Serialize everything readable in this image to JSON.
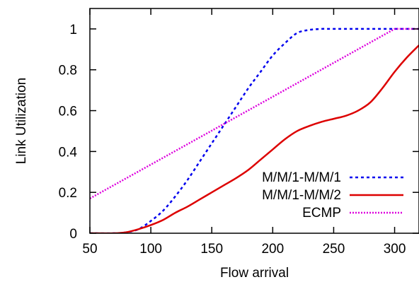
{
  "chart_data": {
    "type": "line",
    "title": "",
    "xlabel": "Flow arrival",
    "ylabel": "Link Utilization",
    "xlim": [
      50,
      320
    ],
    "ylim": [
      0,
      1.1
    ],
    "xticks": [
      50,
      100,
      150,
      200,
      250,
      300
    ],
    "yticks": [
      0,
      0.2,
      0.4,
      0.6,
      0.8,
      1
    ],
    "ytick_labels": [
      "0",
      "0.2",
      "0.4",
      "0.6",
      "0.8",
      "1"
    ],
    "grid": false,
    "legend_position": "bottom-right",
    "series": [
      {
        "name": "M/M/1-M/M/1",
        "color": "#0000ee",
        "style": "dashed",
        "x": [
          50,
          70,
          80,
          90,
          100,
          110,
          120,
          130,
          140,
          150,
          160,
          170,
          180,
          190,
          200,
          210,
          220,
          230,
          240,
          250,
          260,
          280,
          300,
          320
        ],
        "y": [
          0.0,
          0.0,
          0.005,
          0.02,
          0.06,
          0.11,
          0.18,
          0.26,
          0.35,
          0.44,
          0.53,
          0.62,
          0.71,
          0.79,
          0.87,
          0.93,
          0.98,
          0.995,
          1.0,
          1.0,
          1.0,
          1.0,
          1.0,
          1.0
        ]
      },
      {
        "name": "M/M/1-M/M/2",
        "color": "#dd0000",
        "style": "solid",
        "x": [
          50,
          70,
          80,
          90,
          100,
          110,
          120,
          130,
          140,
          150,
          160,
          170,
          180,
          190,
          200,
          210,
          220,
          230,
          240,
          250,
          260,
          270,
          280,
          290,
          300,
          310,
          320
        ],
        "y": [
          0.0,
          0.0,
          0.005,
          0.02,
          0.04,
          0.065,
          0.1,
          0.13,
          0.165,
          0.2,
          0.235,
          0.27,
          0.31,
          0.36,
          0.41,
          0.46,
          0.5,
          0.525,
          0.545,
          0.56,
          0.575,
          0.6,
          0.64,
          0.71,
          0.79,
          0.86,
          0.92
        ]
      },
      {
        "name": "ECMP",
        "color": "#dd00dd",
        "style": "dotted",
        "x": [
          50,
          300,
          320
        ],
        "y": [
          0.17,
          1.0,
          1.0
        ]
      }
    ]
  }
}
